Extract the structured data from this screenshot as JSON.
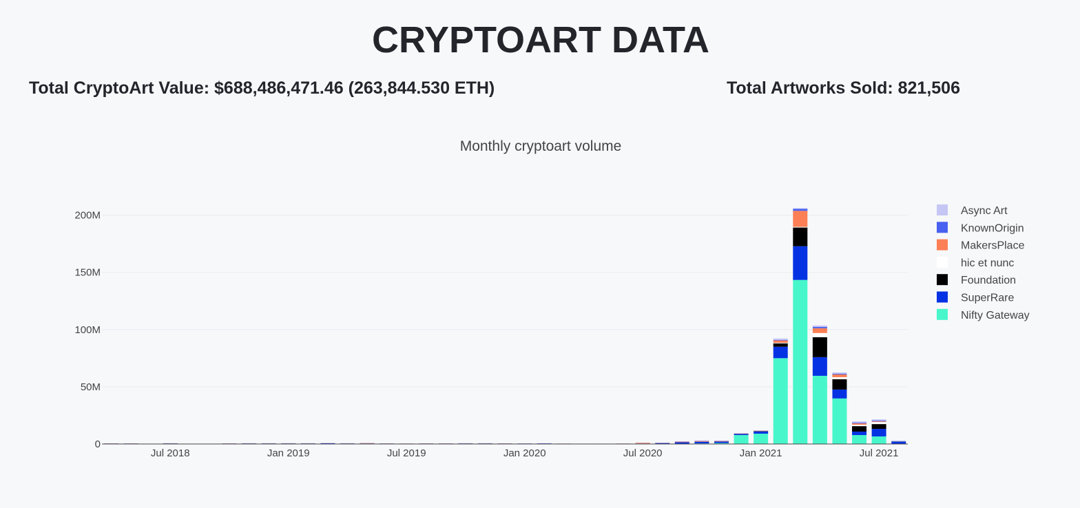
{
  "header": {
    "title": "CRYPTOART DATA",
    "total_value": "Total CryptoArt Value: $688,486,471.46 (263,844.530 ETH)",
    "total_sold": "Total Artworks Sold: 821,506"
  },
  "chart_data": {
    "type": "bar",
    "stacked": true,
    "title": "Monthly cryptoart volume",
    "x": [
      "2018-04",
      "2018-05",
      "2018-06",
      "2018-07",
      "2018-08",
      "2018-09",
      "2018-10",
      "2018-11",
      "2018-12",
      "2019-01",
      "2019-02",
      "2019-03",
      "2019-04",
      "2019-05",
      "2019-06",
      "2019-07",
      "2019-08",
      "2019-09",
      "2019-10",
      "2019-11",
      "2019-12",
      "2020-01",
      "2020-02",
      "2020-03",
      "2020-04",
      "2020-05",
      "2020-06",
      "2020-07",
      "2020-08",
      "2020-09",
      "2020-10",
      "2020-11",
      "2020-12",
      "2021-01",
      "2021-02",
      "2021-03",
      "2021-04",
      "2021-05",
      "2021-06",
      "2021-07",
      "2021-08"
    ],
    "xticks": [
      {
        "value": "2018-07",
        "label": "Jul 2018"
      },
      {
        "value": "2019-01",
        "label": "Jan 2019"
      },
      {
        "value": "2019-07",
        "label": "Jul 2019"
      },
      {
        "value": "2020-01",
        "label": "Jan 2020"
      },
      {
        "value": "2020-07",
        "label": "Jul 2020"
      },
      {
        "value": "2021-01",
        "label": "Jan 2021"
      },
      {
        "value": "2021-07",
        "label": "Jul 2021"
      }
    ],
    "ylim": [
      0,
      210000000
    ],
    "yticks": [
      0,
      {
        "value": 50000000,
        "label": "50M"
      },
      {
        "value": 100000000,
        "label": "100M"
      },
      {
        "value": 150000000,
        "label": "150M"
      },
      {
        "value": 200000000,
        "label": "200M"
      }
    ],
    "grid": true,
    "legend": "right",
    "series": [
      {
        "name": "Nifty Gateway",
        "color": "#47f7cb",
        "values": [
          0,
          0,
          0,
          0,
          0,
          0,
          0,
          0,
          0,
          0,
          0,
          0,
          0,
          0,
          0,
          0,
          0,
          0,
          0,
          0,
          0,
          0,
          0,
          0,
          0,
          0,
          0,
          0,
          0,
          300000.0,
          500000.0,
          800000.0,
          7800000.0,
          9000000.0,
          75000000.0,
          143400000.0,
          59600000.0,
          39800000.0,
          7800000.0,
          6600000.0,
          0
        ]
      },
      {
        "name": "SuperRare",
        "color": "#0533e3",
        "values": [
          400000.0,
          400000.0,
          0,
          500000.0,
          0,
          0,
          400000.0,
          500000.0,
          500000.0,
          500000.0,
          500000.0,
          600000.0,
          500000.0,
          500000.0,
          400000.0,
          300000.0,
          400000.0,
          400000.0,
          500000.0,
          500000.0,
          400000.0,
          400000.0,
          500000.0,
          300000.0,
          200000.0,
          200000.0,
          300000.0,
          400000.0,
          800000.0,
          1200000.0,
          1500000.0,
          1300000.0,
          1000000.0,
          2000000.0,
          10000000.0,
          29500000.0,
          16300000.0,
          7800000.0,
          3000000.0,
          6600000.0,
          2000000.0
        ]
      },
      {
        "name": "Foundation",
        "color": "#000000",
        "values": [
          0,
          0,
          0,
          0,
          0,
          0,
          0,
          0,
          0,
          0,
          0,
          0,
          0,
          0,
          0,
          0,
          0,
          0,
          0,
          0,
          0,
          0,
          0,
          0,
          0,
          0,
          0,
          0,
          0,
          0,
          0,
          0,
          100000.0,
          300000.0,
          3000000.0,
          16300000.0,
          17500000.0,
          9000000.0,
          4800000.0,
          4200000.0,
          200000.0
        ]
      },
      {
        "name": "hic et nunc",
        "color": "#ffffff",
        "values": [
          0,
          0,
          0,
          0,
          0,
          0,
          0,
          0,
          0,
          0,
          0,
          0,
          0,
          0,
          0,
          0,
          0,
          0,
          0,
          0,
          0,
          0,
          0,
          0,
          0,
          0,
          0,
          0,
          0,
          0,
          0,
          0,
          0,
          0,
          500000.0,
          600000.0,
          3600000.0,
          1800000.0,
          1200000.0,
          1800000.0,
          100000.0
        ]
      },
      {
        "name": "MakersPlace",
        "color": "#fc7f55",
        "values": [
          100000.0,
          100000.0,
          0,
          100000.0,
          0,
          0,
          100000.0,
          100000.0,
          100000.0,
          100000.0,
          100000.0,
          100000.0,
          100000.0,
          300000.0,
          100000.0,
          100000.0,
          100000.0,
          100000.0,
          100000.0,
          100000.0,
          100000.0,
          50000.0,
          50000.0,
          50000.0,
          50000.0,
          50000.0,
          100000.0,
          600000.0,
          200000.0,
          500000.0,
          600000.0,
          500000.0,
          300000.0,
          300000.0,
          2000000.0,
          14000000.0,
          4200000.0,
          2400000.0,
          1200000.0,
          600000.0,
          0
        ]
      },
      {
        "name": "KnownOrigin",
        "color": "#4861f0",
        "values": [
          50000.0,
          50000.0,
          0,
          50000.0,
          0,
          0,
          50000.0,
          50000.0,
          50000.0,
          50000.0,
          50000.0,
          50000.0,
          50000.0,
          50000.0,
          50000.0,
          50000.0,
          50000.0,
          50000.0,
          50000.0,
          50000.0,
          50000.0,
          50000.0,
          50000.0,
          50000.0,
          50000.0,
          50000.0,
          50000.0,
          100000.0,
          100000.0,
          200000.0,
          200000.0,
          200000.0,
          100000.0,
          100000.0,
          500000.0,
          1800000.0,
          1200000.0,
          600000.0,
          600000.0,
          600000.0,
          300000.0
        ]
      },
      {
        "name": "Async Art",
        "color": "#c6c6f5",
        "values": [
          0,
          0,
          0,
          0,
          0,
          0,
          0,
          0,
          0,
          0,
          0,
          0,
          0,
          0,
          0,
          0,
          0,
          0,
          0,
          0,
          0,
          0,
          50000.0,
          50000.0,
          50000.0,
          50000.0,
          50000.0,
          100000.0,
          100000.0,
          200000.0,
          300000.0,
          200000.0,
          100000.0,
          100000.0,
          1200000.0,
          600000.0,
          1200000.0,
          1200000.0,
          1200000.0,
          1200000.0,
          0
        ]
      }
    ]
  }
}
